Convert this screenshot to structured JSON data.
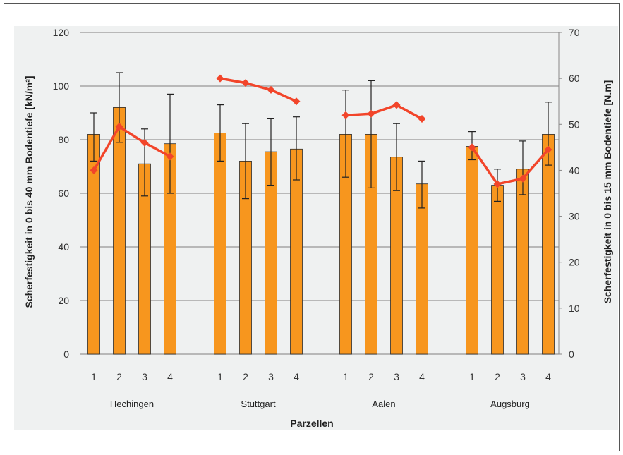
{
  "chart_data": {
    "type": "bar",
    "xlabel": "Parzellen",
    "ylabel": "Scherfestigkeit in 0 bis 40 mm Bodentiefe  [kN/m²]",
    "y2label": "Scherfestigkeit in 0 bis 15 mm Bodentiefe [N.m]",
    "ylim": [
      0,
      120
    ],
    "y2lim": [
      0,
      70
    ],
    "yticks": [
      "0",
      "20",
      "40",
      "60",
      "80",
      "100",
      "120"
    ],
    "y2ticks": [
      "0",
      "10",
      "20",
      "30",
      "40",
      "50",
      "60",
      "70"
    ],
    "grid": true,
    "groups": [
      {
        "name": "Hechingen",
        "categories": [
          "1",
          "2",
          "3",
          "4"
        ]
      },
      {
        "name": "Stuttgart",
        "categories": [
          "1",
          "2",
          "3",
          "4"
        ]
      },
      {
        "name": "Aalen",
        "categories": [
          "1",
          "2",
          "3",
          "4"
        ]
      },
      {
        "name": "Augsburg",
        "categories": [
          "1",
          "2",
          "3",
          "4"
        ]
      }
    ],
    "series": [
      {
        "axis": "left",
        "kind": "bar",
        "color": "#f7961e",
        "values": [
          82,
          92,
          71,
          78.5,
          82.5,
          72,
          75.5,
          76.5,
          82,
          82,
          73.5,
          63.5,
          77.5,
          63,
          69,
          82
        ],
        "error_plus": [
          8,
          13,
          13,
          18.5,
          10.5,
          14,
          12.5,
          12,
          16.5,
          20,
          12.5,
          8.5,
          5.5,
          6,
          10.5,
          12
        ],
        "error_minus": [
          10,
          13,
          12,
          18.5,
          10.5,
          14,
          12.5,
          11.5,
          16,
          20,
          12.5,
          9,
          5,
          6,
          9.5,
          11.5
        ]
      },
      {
        "axis": "right",
        "kind": "line",
        "color": "#f2452a",
        "segments": [
          [
            40,
            49.5,
            46,
            43
          ],
          [
            60,
            59,
            57.5,
            55
          ],
          [
            52,
            52.3,
            54.2,
            51.2
          ],
          [
            45,
            37,
            38.2,
            44.5
          ]
        ]
      }
    ]
  }
}
